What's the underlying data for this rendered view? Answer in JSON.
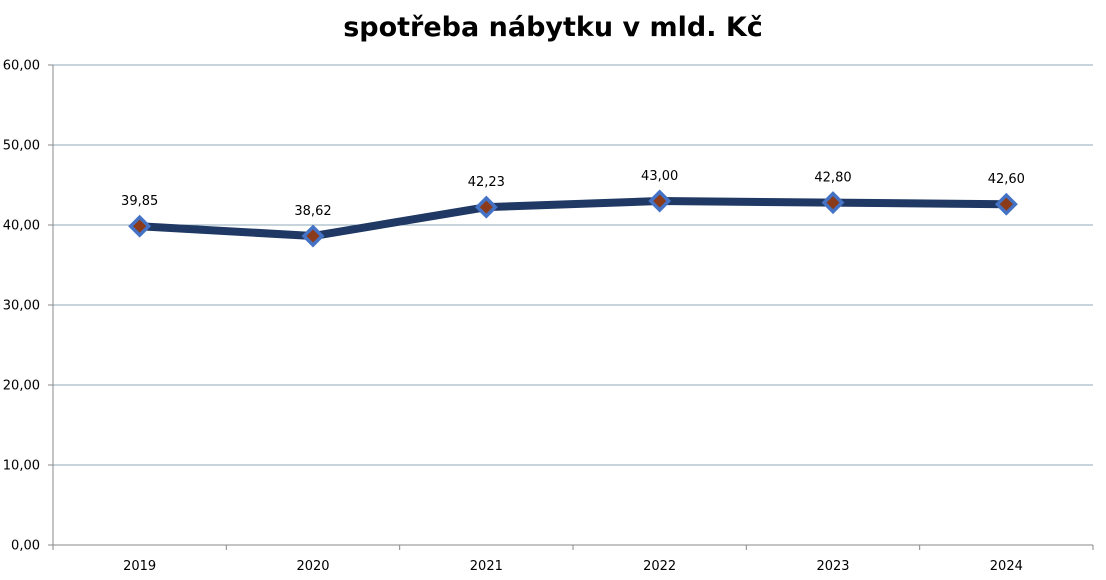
{
  "chart_data": {
    "type": "line",
    "title": "spotřeba nábytku v mld. Kč",
    "xlabel": "",
    "ylabel": "",
    "categories": [
      "2019",
      "2020",
      "2021",
      "2022",
      "2023",
      "2024"
    ],
    "series": [
      {
        "values": [
          39.85,
          38.62,
          42.23,
          43.0,
          42.8,
          42.6
        ],
        "labels": [
          "39,85",
          "38,62",
          "42,23",
          "43,00",
          "42,80",
          "42,60"
        ],
        "line_color": "#1f3864",
        "marker": "diamond",
        "marker_fill": "#8b3a1a",
        "marker_edge": "#4472c4"
      }
    ],
    "ylim": [
      0,
      60
    ],
    "yticks": [
      0,
      10,
      20,
      30,
      40,
      50,
      60
    ],
    "ytick_labels": [
      "0,00",
      "10,00",
      "20,00",
      "30,00",
      "40,00",
      "50,00",
      "60,00"
    ],
    "grid": true,
    "grid_color": "#8faab8",
    "legend": "none"
  }
}
